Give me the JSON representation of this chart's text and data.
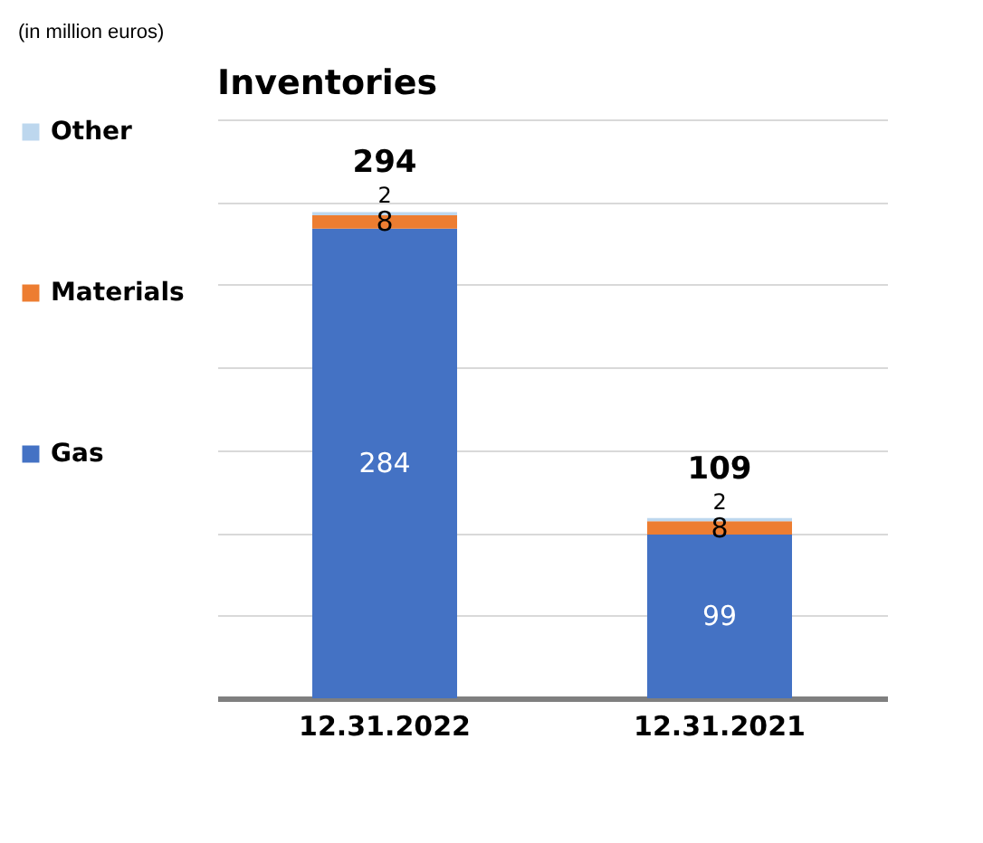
{
  "chart_data": {
    "type": "bar",
    "title": "Inventories",
    "annotations": [
      "(in million euros)"
    ],
    "categories": [
      "12.31.2022",
      "12.31.2021"
    ],
    "stacked": true,
    "series": [
      {
        "name": "Gas",
        "color": "#4472c4",
        "values": [
          284,
          99
        ]
      },
      {
        "name": "Materials",
        "color": "#ed7d31",
        "values": [
          8,
          8
        ]
      },
      {
        "name": "Other",
        "color": "#bdd7ee",
        "values": [
          2,
          2
        ]
      }
    ],
    "totals": [
      "294",
      "109"
    ],
    "data_labels": true,
    "ylim": [
      0,
      350
    ],
    "yticks": [
      {
        "value": 0,
        "label": null
      },
      {
        "value": 50,
        "label": null
      },
      {
        "value": 100,
        "label": null
      },
      {
        "value": 150,
        "label": null
      },
      {
        "value": 200,
        "label": null
      },
      {
        "value": 250,
        "label": null
      },
      {
        "value": 300,
        "label": null
      },
      {
        "value": 350,
        "label": null
      }
    ],
    "tick_labels": "x",
    "grid": "y",
    "legend": "left"
  }
}
